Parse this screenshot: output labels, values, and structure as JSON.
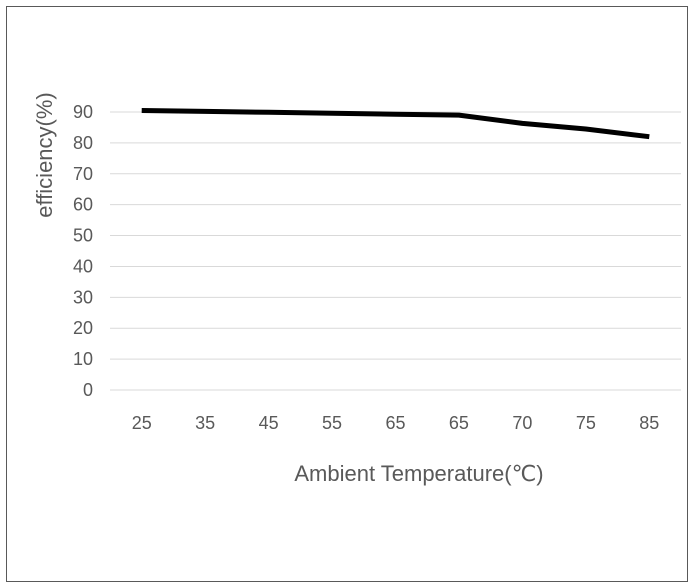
{
  "chart_data": {
    "type": "line",
    "title": "",
    "xlabel": "Ambient Temperature(℃)",
    "ylabel": "efficiency(%)",
    "categories": [
      "25",
      "35",
      "45",
      "55",
      "65",
      "65",
      "70",
      "75",
      "85"
    ],
    "series": [
      {
        "values": [
          90.5,
          90.2,
          89.9,
          89.6,
          89.3,
          89.0,
          86.3,
          84.5,
          82.0
        ]
      }
    ],
    "ylim": [
      0,
      90
    ],
    "yticks": [
      0,
      10,
      20,
      30,
      40,
      50,
      60,
      70,
      80,
      90
    ],
    "grid": true,
    "legend": "none",
    "colors": {
      "line": "#000000",
      "grid": "#d9d9d9",
      "text": "#595959",
      "border": "#595959"
    }
  }
}
